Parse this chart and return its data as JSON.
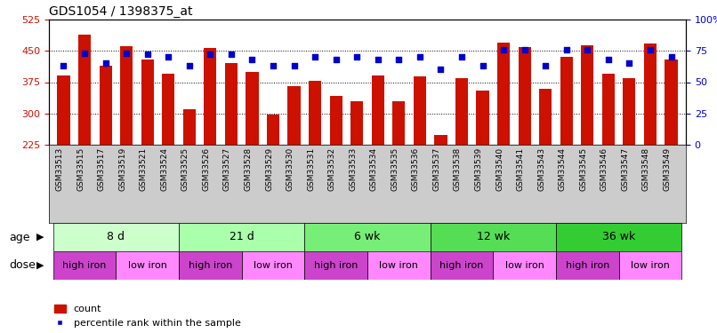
{
  "title": "GDS1054 / 1398375_at",
  "samples": [
    "GSM33513",
    "GSM33515",
    "GSM33517",
    "GSM33519",
    "GSM33521",
    "GSM33524",
    "GSM33525",
    "GSM33526",
    "GSM33527",
    "GSM33528",
    "GSM33529",
    "GSM33530",
    "GSM33531",
    "GSM33532",
    "GSM33533",
    "GSM33534",
    "GSM33535",
    "GSM33536",
    "GSM33537",
    "GSM33538",
    "GSM33539",
    "GSM33540",
    "GSM33541",
    "GSM33543",
    "GSM33544",
    "GSM33545",
    "GSM33546",
    "GSM33547",
    "GSM33548",
    "GSM33549"
  ],
  "bar_values": [
    390,
    488,
    415,
    462,
    430,
    395,
    310,
    457,
    420,
    400,
    297,
    365,
    378,
    342,
    330,
    390,
    330,
    388,
    248,
    385,
    355,
    470,
    460,
    360,
    435,
    463,
    395,
    385,
    467,
    430
  ],
  "percentile_values": [
    63,
    73,
    65,
    73,
    72,
    70,
    63,
    72,
    72,
    68,
    63,
    63,
    70,
    68,
    70,
    68,
    68,
    70,
    60,
    70,
    63,
    76,
    76,
    63,
    76,
    76,
    68,
    65,
    76,
    70
  ],
  "bar_color": "#CC1100",
  "dot_color": "#0000CC",
  "ylim_left": [
    225,
    525
  ],
  "ylim_right": [
    0,
    100
  ],
  "yticks_left": [
    225,
    300,
    375,
    450,
    525
  ],
  "yticks_right": [
    0,
    25,
    50,
    75,
    100
  ],
  "ytick_labels_right": [
    "0",
    "25",
    "50",
    "75",
    "100%"
  ],
  "hgrid_vals": [
    300,
    375,
    450
  ],
  "age_groups": [
    {
      "label": "8 d",
      "start": 0,
      "end": 6,
      "color": "#ccffcc"
    },
    {
      "label": "21 d",
      "start": 6,
      "end": 12,
      "color": "#aaffaa"
    },
    {
      "label": "6 wk",
      "start": 12,
      "end": 18,
      "color": "#77ee77"
    },
    {
      "label": "12 wk",
      "start": 18,
      "end": 24,
      "color": "#55dd55"
    },
    {
      "label": "36 wk",
      "start": 24,
      "end": 30,
      "color": "#33cc33"
    }
  ],
  "dose_groups": [
    {
      "label": "high iron",
      "start": 0,
      "end": 3,
      "color": "#cc44cc"
    },
    {
      "label": "low iron",
      "start": 3,
      "end": 6,
      "color": "#ff88ff"
    },
    {
      "label": "high iron",
      "start": 6,
      "end": 9,
      "color": "#cc44cc"
    },
    {
      "label": "low iron",
      "start": 9,
      "end": 12,
      "color": "#ff88ff"
    },
    {
      "label": "high iron",
      "start": 12,
      "end": 15,
      "color": "#cc44cc"
    },
    {
      "label": "low iron",
      "start": 15,
      "end": 18,
      "color": "#ff88ff"
    },
    {
      "label": "high iron",
      "start": 18,
      "end": 21,
      "color": "#cc44cc"
    },
    {
      "label": "low iron",
      "start": 21,
      "end": 24,
      "color": "#ff88ff"
    },
    {
      "label": "high iron",
      "start": 24,
      "end": 27,
      "color": "#cc44cc"
    },
    {
      "label": "low iron",
      "start": 27,
      "end": 30,
      "color": "#ff88ff"
    }
  ],
  "age_label": "age",
  "dose_label": "dose",
  "legend_bar_label": "count",
  "legend_dot_label": "percentile rank within the sample",
  "background_color": "#ffffff",
  "left_axis_color": "#CC1100",
  "right_axis_color": "#0000CC",
  "xtick_bg": "#cccccc"
}
